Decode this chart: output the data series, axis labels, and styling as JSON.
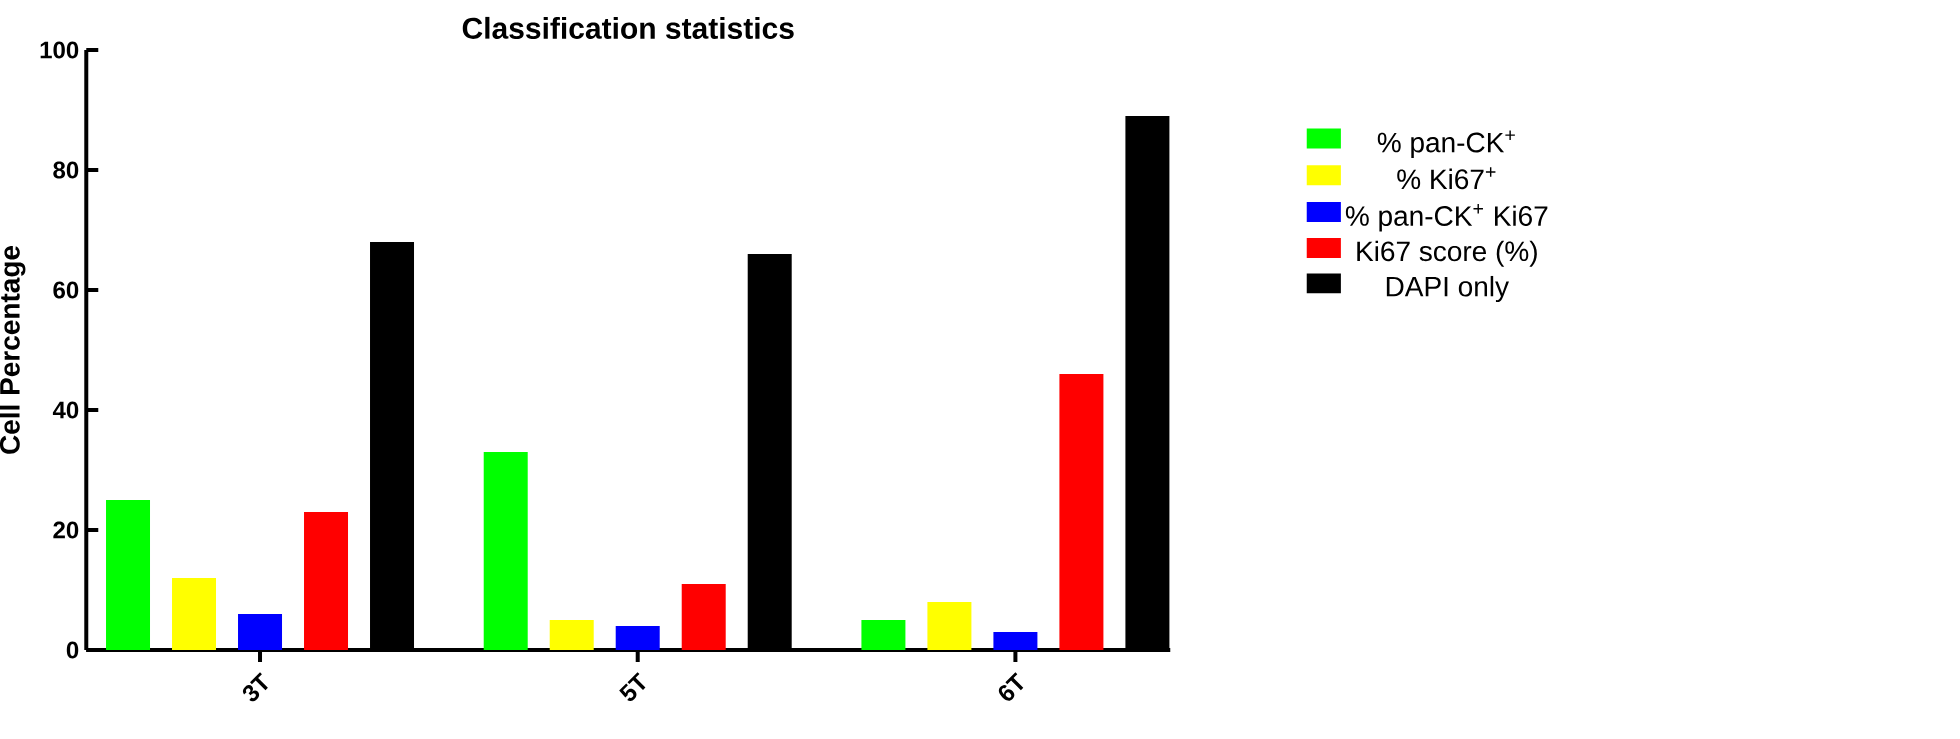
{
  "chart_data": {
    "type": "bar",
    "title": "Classification statistics",
    "ylabel": "Cell Percentage",
    "categories": [
      "3T",
      "5T",
      "6T"
    ],
    "series": [
      {
        "name": "% pan-CK$^{+}$",
        "color": "#00ff00",
        "values": [
          25,
          33,
          5
        ]
      },
      {
        "name": "% Ki67$^{+}$",
        "color": "#ffff00",
        "values": [
          12,
          5,
          8
        ]
      },
      {
        "name": "% pan-CK$^{+}$ Ki67",
        "color": "#0000ff",
        "values": [
          6,
          4,
          3
        ]
      },
      {
        "name": "Ki67 score (%)",
        "color": "#ff0000",
        "values": [
          23,
          11,
          46
        ]
      },
      {
        "name": "DAPI only",
        "color": "#000000",
        "values": [
          68,
          66,
          89
        ]
      }
    ],
    "ylim": [
      0,
      100
    ],
    "yticks": [
      0,
      20,
      40,
      60,
      80,
      100
    ],
    "legend": "right"
  }
}
